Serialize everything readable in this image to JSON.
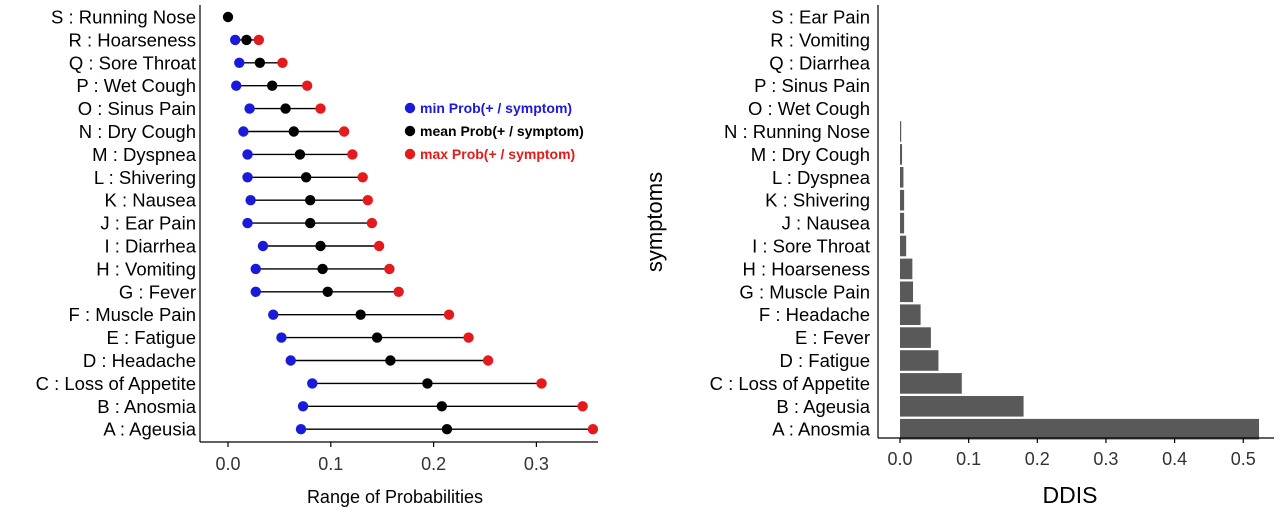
{
  "chart_data": [
    {
      "type": "dumbbell",
      "xlabel": "Range of Probabilities",
      "ylabel": "",
      "xlim": [
        -0.02,
        0.365
      ],
      "xticks": [
        0.0,
        0.1,
        0.2,
        0.3
      ],
      "xtick_labels": [
        "0.0",
        "0.1",
        "0.2",
        "0.3"
      ],
      "grid": false,
      "legend_position": "top-right",
      "series": [
        {
          "name": "min Prob(+ / symptom)",
          "color": "#1a1adb"
        },
        {
          "name": "mean Prob(+ / symptom)",
          "color": "#000000"
        },
        {
          "name": "max Prob(+ / symptom)",
          "color": "#e41a1c"
        }
      ],
      "categories": [
        "S : Running Nose",
        "R : Hoarseness",
        "Q : Sore Throat",
        "P : Wet Cough",
        "O : Sinus Pain",
        "N : Dry Cough",
        "M : Dyspnea",
        "L : Shivering",
        "K : Nausea",
        "J : Ear Pain",
        "I : Diarrhea",
        "H : Vomiting",
        "G : Fever",
        "F : Muscle Pain",
        "E : Fatigue",
        "D : Headache",
        "C : Loss of Appetite",
        "B : Anosmia",
        "A : Ageusia"
      ],
      "min": [
        null,
        0.007,
        0.011,
        0.008,
        0.021,
        0.015,
        0.019,
        0.019,
        0.022,
        0.019,
        0.034,
        0.027,
        0.027,
        0.044,
        0.052,
        0.061,
        0.082,
        0.073,
        0.071
      ],
      "mean": [
        0.0,
        0.018,
        0.031,
        0.043,
        0.056,
        0.064,
        0.07,
        0.076,
        0.08,
        0.08,
        0.09,
        0.092,
        0.097,
        0.129,
        0.145,
        0.158,
        0.194,
        0.208,
        0.213
      ],
      "max": [
        null,
        0.03,
        0.053,
        0.077,
        0.09,
        0.113,
        0.121,
        0.131,
        0.136,
        0.14,
        0.147,
        0.157,
        0.166,
        0.215,
        0.234,
        0.253,
        0.305,
        0.345,
        0.355
      ]
    },
    {
      "type": "bar",
      "orientation": "horizontal",
      "xlabel": "DDIS",
      "ylabel": "symptoms",
      "xlim": [
        -0.025,
        0.545
      ],
      "xticks": [
        0.0,
        0.1,
        0.2,
        0.3,
        0.4,
        0.5
      ],
      "xtick_labels": [
        "0.0",
        "0.1",
        "0.2",
        "0.3",
        "0.4",
        "0.5"
      ],
      "grid": false,
      "bar_color": "#595959",
      "categories": [
        "S : Ear Pain",
        "R : Vomiting",
        "Q : Diarrhea",
        "P : Sinus Pain",
        "O : Wet Cough",
        "N : Running Nose",
        "M : Dry Cough",
        "L : Dyspnea",
        "K : Shivering",
        "J : Nausea",
        "I : Sore Throat",
        "H : Hoarseness",
        "G : Muscle Pain",
        "F : Headache",
        "E : Fever",
        "D : Fatigue",
        "C : Loss of Appetite",
        "B : Ageusia",
        "A : Anosmia"
      ],
      "values": [
        0.0,
        0.0,
        0.0,
        0.0,
        0.0,
        0.001,
        0.003,
        0.005,
        0.006,
        0.006,
        0.009,
        0.018,
        0.019,
        0.03,
        0.045,
        0.056,
        0.09,
        0.18,
        0.523
      ]
    }
  ]
}
